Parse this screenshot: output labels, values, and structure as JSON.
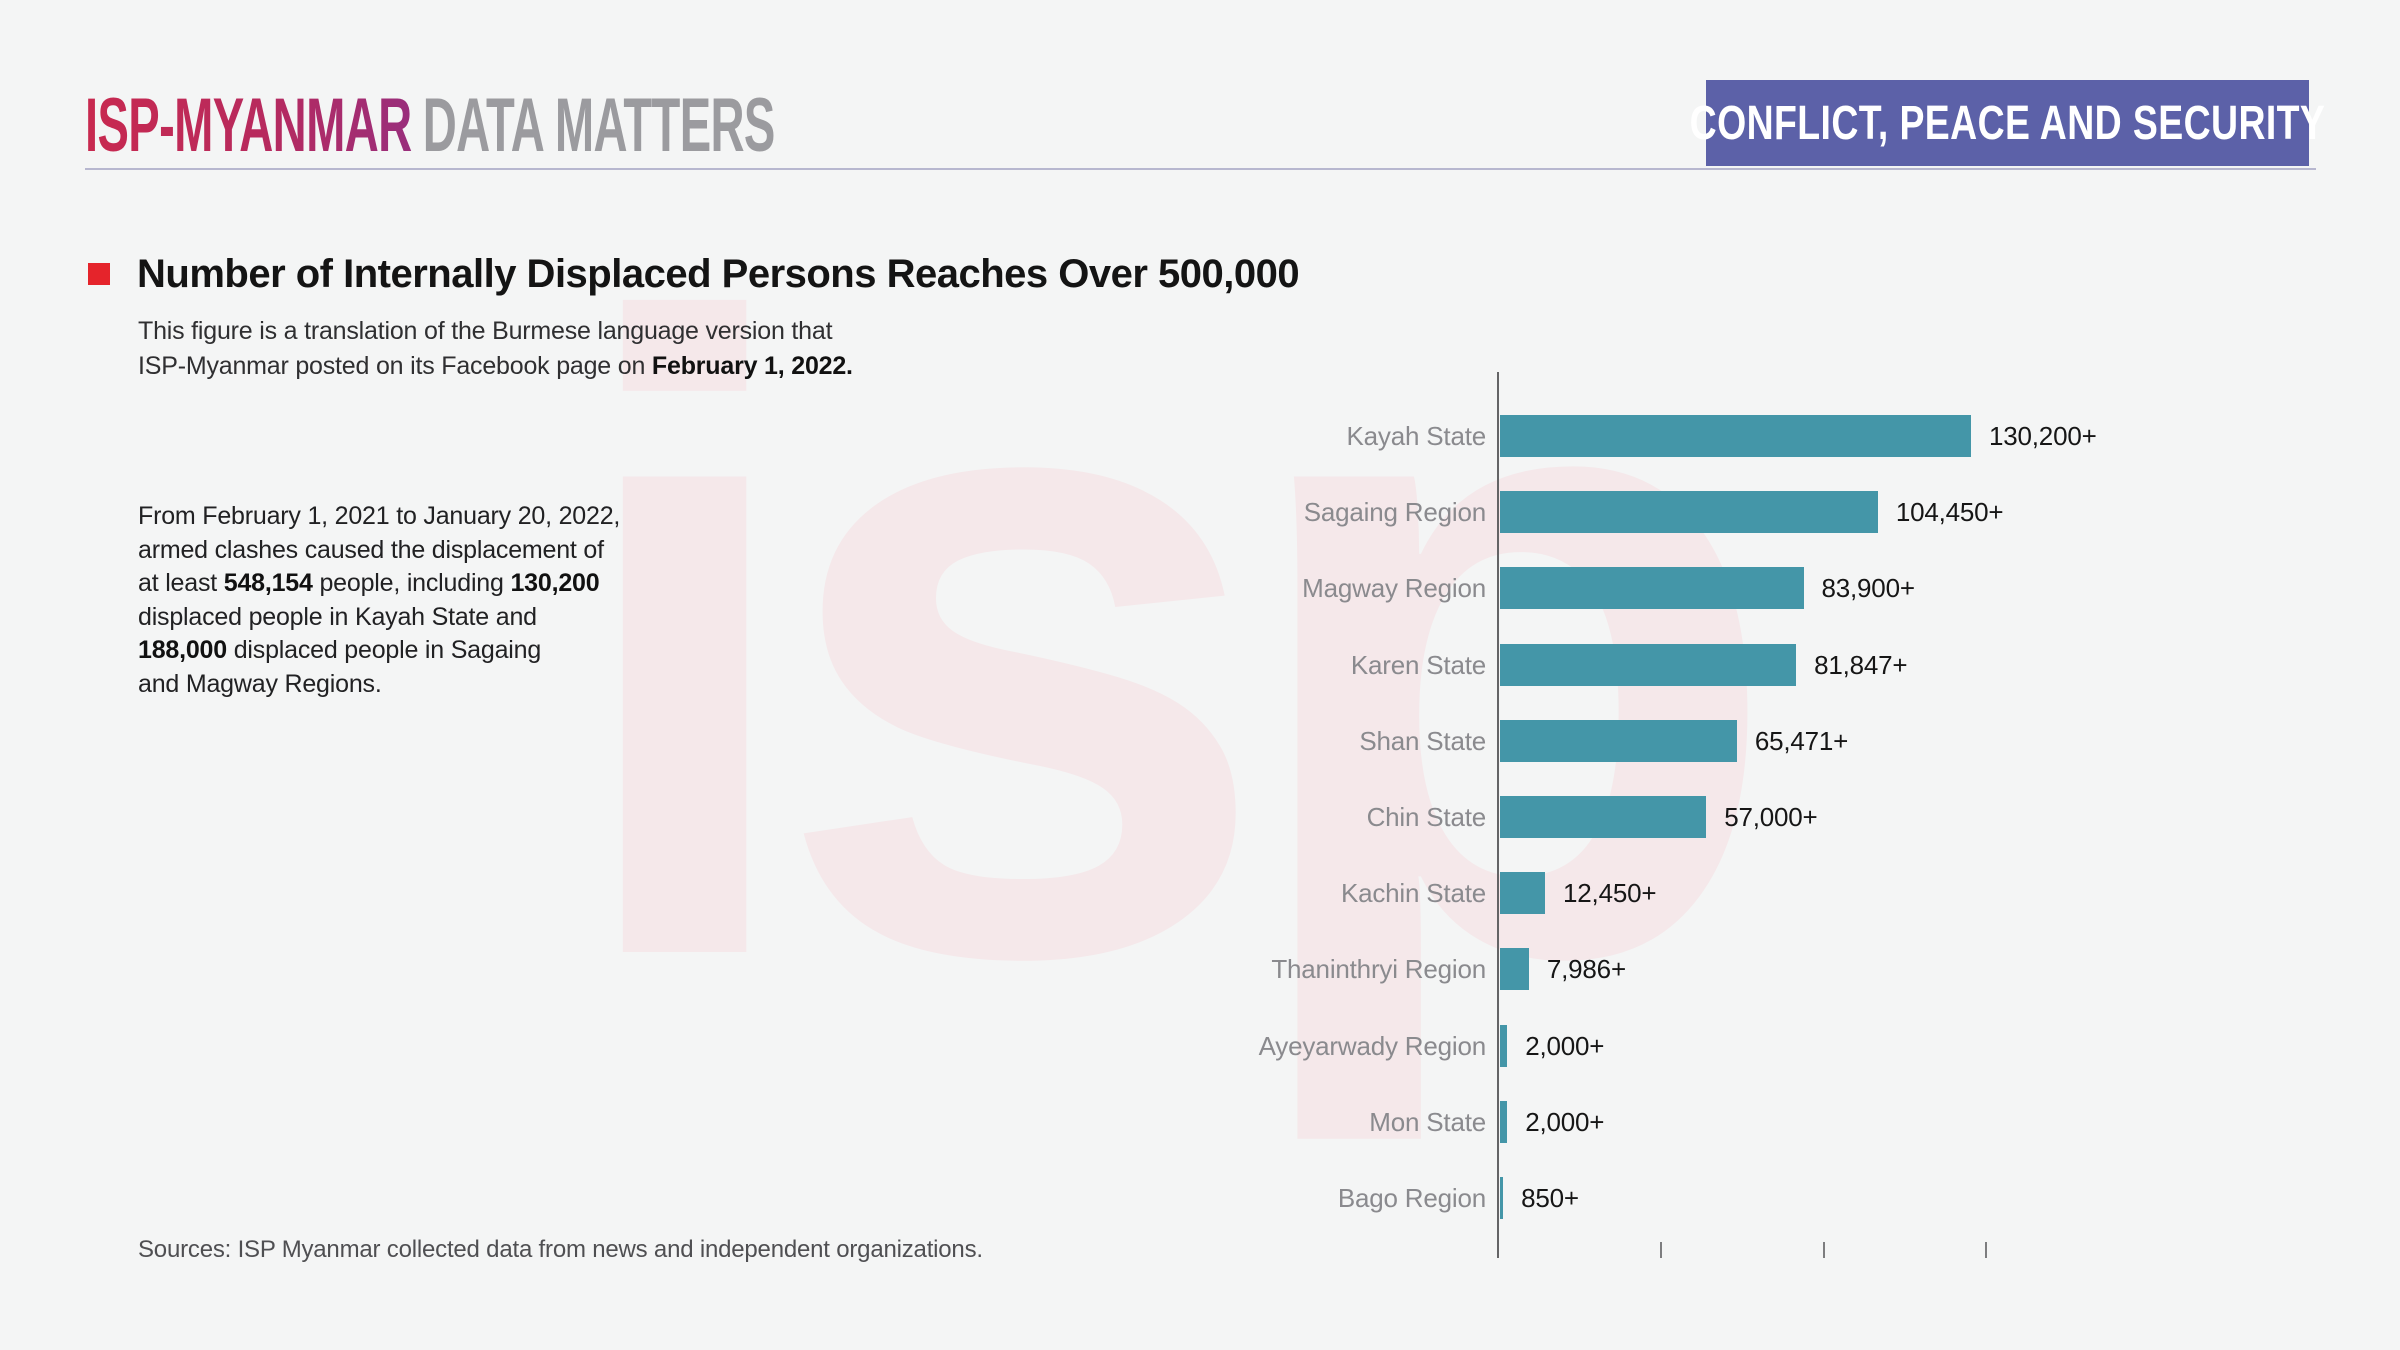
{
  "header": {
    "brand_primary": "ISP-MYANMAR",
    "brand_secondary": "DATA MATTERS",
    "category_badge": "CONFLICT, PEACE AND SECURITY"
  },
  "title": "Number of Internally Displaced Persons Reaches Over 500,000",
  "subtitle_segments": [
    {
      "text": "This figure is a translation of the Burmese language version that\nISP-Myanmar posted on its Facebook page on ",
      "bold": false
    },
    {
      "text": "February 1, 2022.",
      "bold": true
    }
  ],
  "paragraph_segments": [
    {
      "text": "From February 1, 2021 to January 20, 2022,\narmed clashes caused the displacement of\nat least ",
      "bold": false
    },
    {
      "text": "548,154",
      "bold": true
    },
    {
      "text": " people, including ",
      "bold": false
    },
    {
      "text": "130,200",
      "bold": true
    },
    {
      "text": "\ndisplaced people in Kayah State and\n",
      "bold": false
    },
    {
      "text": "188,000",
      "bold": true
    },
    {
      "text": " displaced people in Sagaing\nand Magway Regions.",
      "bold": false
    }
  ],
  "watermark_text": "isp",
  "sources": "Sources: ISP Myanmar collected data from news and independent organizations.",
  "colors": {
    "accent_red": "#e5242b",
    "bar_teal": "#4496a8",
    "badge_purple": "#5c61a8",
    "brand_gradient_start": "#c8294f",
    "brand_gradient_end": "#992e7c",
    "watermark_pink": "#f5e8ea",
    "background": "#f4f5f5"
  },
  "chart_data": {
    "type": "bar",
    "orientation": "horizontal",
    "title": "Number of Internally Displaced Persons Reaches Over 500,000",
    "categories": [
      "Kayah State",
      "Sagaing Region",
      "Magway Region",
      "Karen State",
      "Shan State",
      "Chin State",
      "Kachin State",
      "Thaninthryi Region",
      "Ayeyarwady Region",
      "Mon State",
      "Bago Region"
    ],
    "values": [
      130200,
      104450,
      83900,
      81847,
      65471,
      57000,
      12450,
      7986,
      2000,
      2000,
      850
    ],
    "value_labels": [
      "130,200+",
      "104,450+",
      "83,900+",
      "81,847+",
      "65,471+",
      "57,000+",
      "12,450+",
      "7,986+",
      "2,000+",
      "2,000+",
      "850+"
    ],
    "xlabel": "",
    "ylabel": "",
    "xlim": [
      0,
      141000
    ],
    "axis_ticks": [
      45000,
      90000,
      135000
    ],
    "tick_labels_visible": false,
    "grid": false,
    "legend": false,
    "bar_color": "#4496a8"
  }
}
